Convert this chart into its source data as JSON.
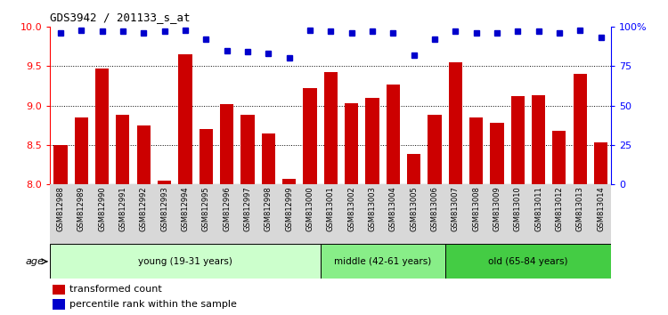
{
  "title": "GDS3942 / 201133_s_at",
  "categories": [
    "GSM812988",
    "GSM812989",
    "GSM812990",
    "GSM812991",
    "GSM812992",
    "GSM812993",
    "GSM812994",
    "GSM812995",
    "GSM812996",
    "GSM812997",
    "GSM812998",
    "GSM812999",
    "GSM813000",
    "GSM813001",
    "GSM813002",
    "GSM813003",
    "GSM813004",
    "GSM813005",
    "GSM813006",
    "GSM813007",
    "GSM813008",
    "GSM813009",
    "GSM813010",
    "GSM813011",
    "GSM813012",
    "GSM813013",
    "GSM813014"
  ],
  "bar_values": [
    8.5,
    8.85,
    9.47,
    8.88,
    8.75,
    8.05,
    9.65,
    8.7,
    9.02,
    8.88,
    8.65,
    8.07,
    9.22,
    9.42,
    9.03,
    9.1,
    9.27,
    8.38,
    8.88,
    9.55,
    8.85,
    8.78,
    9.12,
    9.13,
    8.68,
    9.4,
    8.53
  ],
  "dot_values": [
    96,
    98,
    97,
    97,
    96,
    97,
    98,
    92,
    85,
    84,
    83,
    80,
    98,
    97,
    96,
    97,
    96,
    82,
    92,
    97,
    96,
    96,
    97,
    97,
    96,
    98,
    93
  ],
  "bar_color": "#cc0000",
  "dot_color": "#0000cc",
  "ylim_left": [
    8.0,
    10.0
  ],
  "ylim_right": [
    0,
    100
  ],
  "yticks_left": [
    8.0,
    8.5,
    9.0,
    9.5,
    10.0
  ],
  "yticks_right": [
    0,
    25,
    50,
    75,
    100
  ],
  "ytick_labels_right": [
    "0",
    "25",
    "50",
    "75",
    "100%"
  ],
  "grid_lines": [
    8.5,
    9.0,
    9.5
  ],
  "group_young": {
    "label": "young (19-31 years)",
    "start": 0,
    "end": 13,
    "color": "#ccffcc"
  },
  "group_middle": {
    "label": "middle (42-61 years)",
    "start": 13,
    "end": 19,
    "color": "#88ee88"
  },
  "group_old": {
    "label": "old (65-84 years)",
    "start": 19,
    "end": 27,
    "color": "#44cc44"
  },
  "age_label": "age",
  "legend_bar_label": "transformed count",
  "legend_dot_label": "percentile rank within the sample",
  "tick_area_color": "#d8d8d8"
}
